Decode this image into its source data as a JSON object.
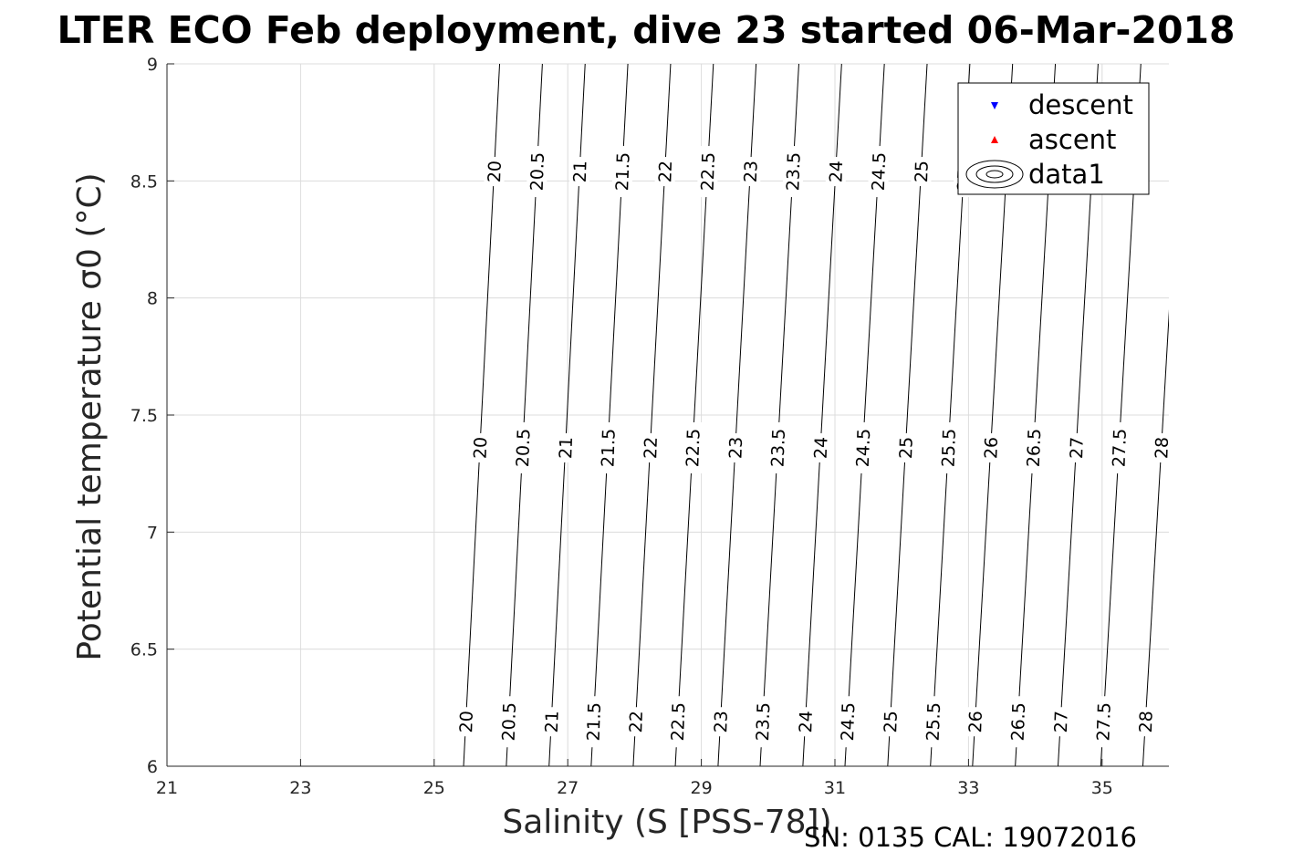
{
  "chart_data": {
    "type": "contour",
    "title": "LTER ECO Feb deployment, dive 23 started 06-Mar-2018",
    "xlabel": "Salinity (S [PSS-78])",
    "ylabel": "Potential temperature σ0 (°C)",
    "xlim": [
      21,
      36
    ],
    "ylim": [
      6,
      9
    ],
    "x_ticks": [
      "21",
      "23",
      "25",
      "27",
      "29",
      "31",
      "33",
      "35"
    ],
    "y_ticks": [
      "6",
      "6.5",
      "7",
      "7.5",
      "8",
      "8.5",
      "9"
    ],
    "grid": true,
    "contour_levels": [
      20,
      20.5,
      21,
      21.5,
      22,
      22.5,
      23,
      23.5,
      24,
      24.5,
      25,
      25.5,
      26,
      26.5,
      27,
      27.5,
      28
    ],
    "contour_lines": [
      {
        "label": "20",
        "s_bottom": 25.44,
        "s_top": 25.98
      },
      {
        "label": "20.5",
        "s_bottom": 26.08,
        "s_top": 26.62
      },
      {
        "label": "21",
        "s_bottom": 26.72,
        "s_top": 27.26
      },
      {
        "label": "21.5",
        "s_bottom": 27.35,
        "s_top": 27.9
      },
      {
        "label": "22",
        "s_bottom": 27.98,
        "s_top": 28.54
      },
      {
        "label": "22.5",
        "s_bottom": 28.61,
        "s_top": 29.18
      },
      {
        "label": "23",
        "s_bottom": 29.25,
        "s_top": 29.82
      },
      {
        "label": "23.5",
        "s_bottom": 29.88,
        "s_top": 30.46
      },
      {
        "label": "24",
        "s_bottom": 30.52,
        "s_top": 31.1
      },
      {
        "label": "24.5",
        "s_bottom": 31.15,
        "s_top": 31.74
      },
      {
        "label": "25",
        "s_bottom": 31.79,
        "s_top": 32.38
      },
      {
        "label": "25.5",
        "s_bottom": 32.43,
        "s_top": 33.02
      },
      {
        "label": "26",
        "s_bottom": 33.06,
        "s_top": 33.66
      },
      {
        "label": "26.5",
        "s_bottom": 33.7,
        "s_top": 34.3
      },
      {
        "label": "27",
        "s_bottom": 34.34,
        "s_top": 34.94
      },
      {
        "label": "27.5",
        "s_bottom": 34.98,
        "s_top": 35.58
      },
      {
        "label": "28",
        "s_bottom": 35.61,
        "s_top": 36.22
      }
    ],
    "contour_label_rows": [
      {
        "y": 6.19,
        "labels": [
          "20",
          "20.5",
          "21",
          "21.5",
          "22",
          "22.5",
          "23",
          "23.5",
          "24",
          "24.5",
          "25",
          "25.5",
          "26",
          "26.5",
          "27",
          "27.5",
          "28"
        ]
      },
      {
        "y": 7.36,
        "labels": [
          "20",
          "20.5",
          "21",
          "21.5",
          "22",
          "22.5",
          "23",
          "23.5",
          "24",
          "24.5",
          "25",
          "25.5",
          "26",
          "26.5",
          "27",
          "27.5",
          "28"
        ]
      },
      {
        "y": 8.54,
        "labels": [
          "20",
          "20.5",
          "21",
          "21.5",
          "22",
          "22.5",
          "23",
          "23.5",
          "24",
          "24.5",
          "25",
          "25.5"
        ]
      }
    ],
    "series": [
      {
        "name": "descent",
        "marker": "triangle-down",
        "color": "#0000ff",
        "values": []
      },
      {
        "name": "ascent",
        "marker": "triangle-up",
        "color": "#ff0000",
        "values": []
      },
      {
        "name": "data1",
        "marker": "contour",
        "color": "#000000",
        "values": []
      }
    ],
    "legend_position": "top-right"
  },
  "footer": {
    "serial": "SN: 0135  CAL: 19072016"
  }
}
